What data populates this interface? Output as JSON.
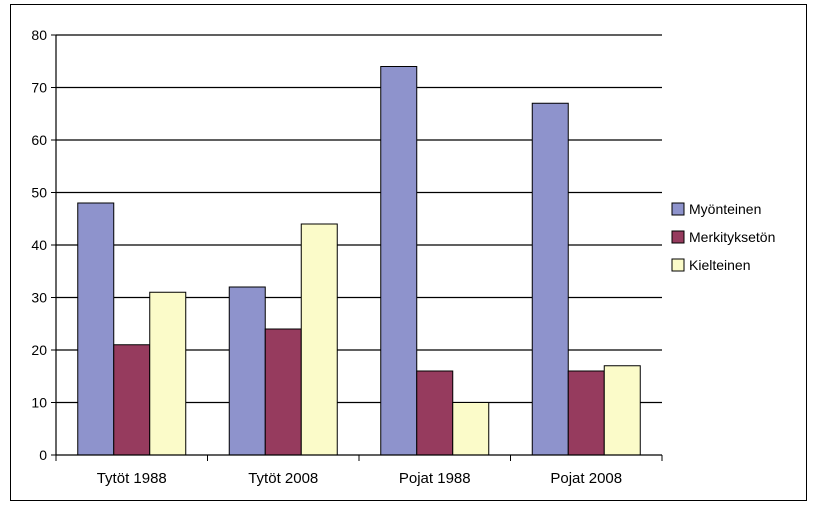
{
  "chart_data": {
    "type": "bar",
    "categories": [
      "Tytöt 1988",
      "Tytöt 2008",
      "Pojat 1988",
      "Pojat 2008"
    ],
    "series": [
      {
        "name": "Myönteinen",
        "values": [
          48,
          32,
          74,
          67
        ],
        "color": "#8E93CC"
      },
      {
        "name": "Merkityksetön",
        "values": [
          21,
          24,
          16,
          16
        ],
        "color": "#963B5E"
      },
      {
        "name": "Kielteinen",
        "values": [
          31,
          44,
          10,
          17
        ],
        "color": "#FBFBC9"
      }
    ],
    "yticks": [
      "0",
      "10",
      "20",
      "30",
      "40",
      "50",
      "60",
      "70",
      "80"
    ],
    "ylim": [
      0,
      80
    ],
    "grid": true,
    "legend_position": "right",
    "title": "",
    "xlabel": "",
    "ylabel": ""
  }
}
